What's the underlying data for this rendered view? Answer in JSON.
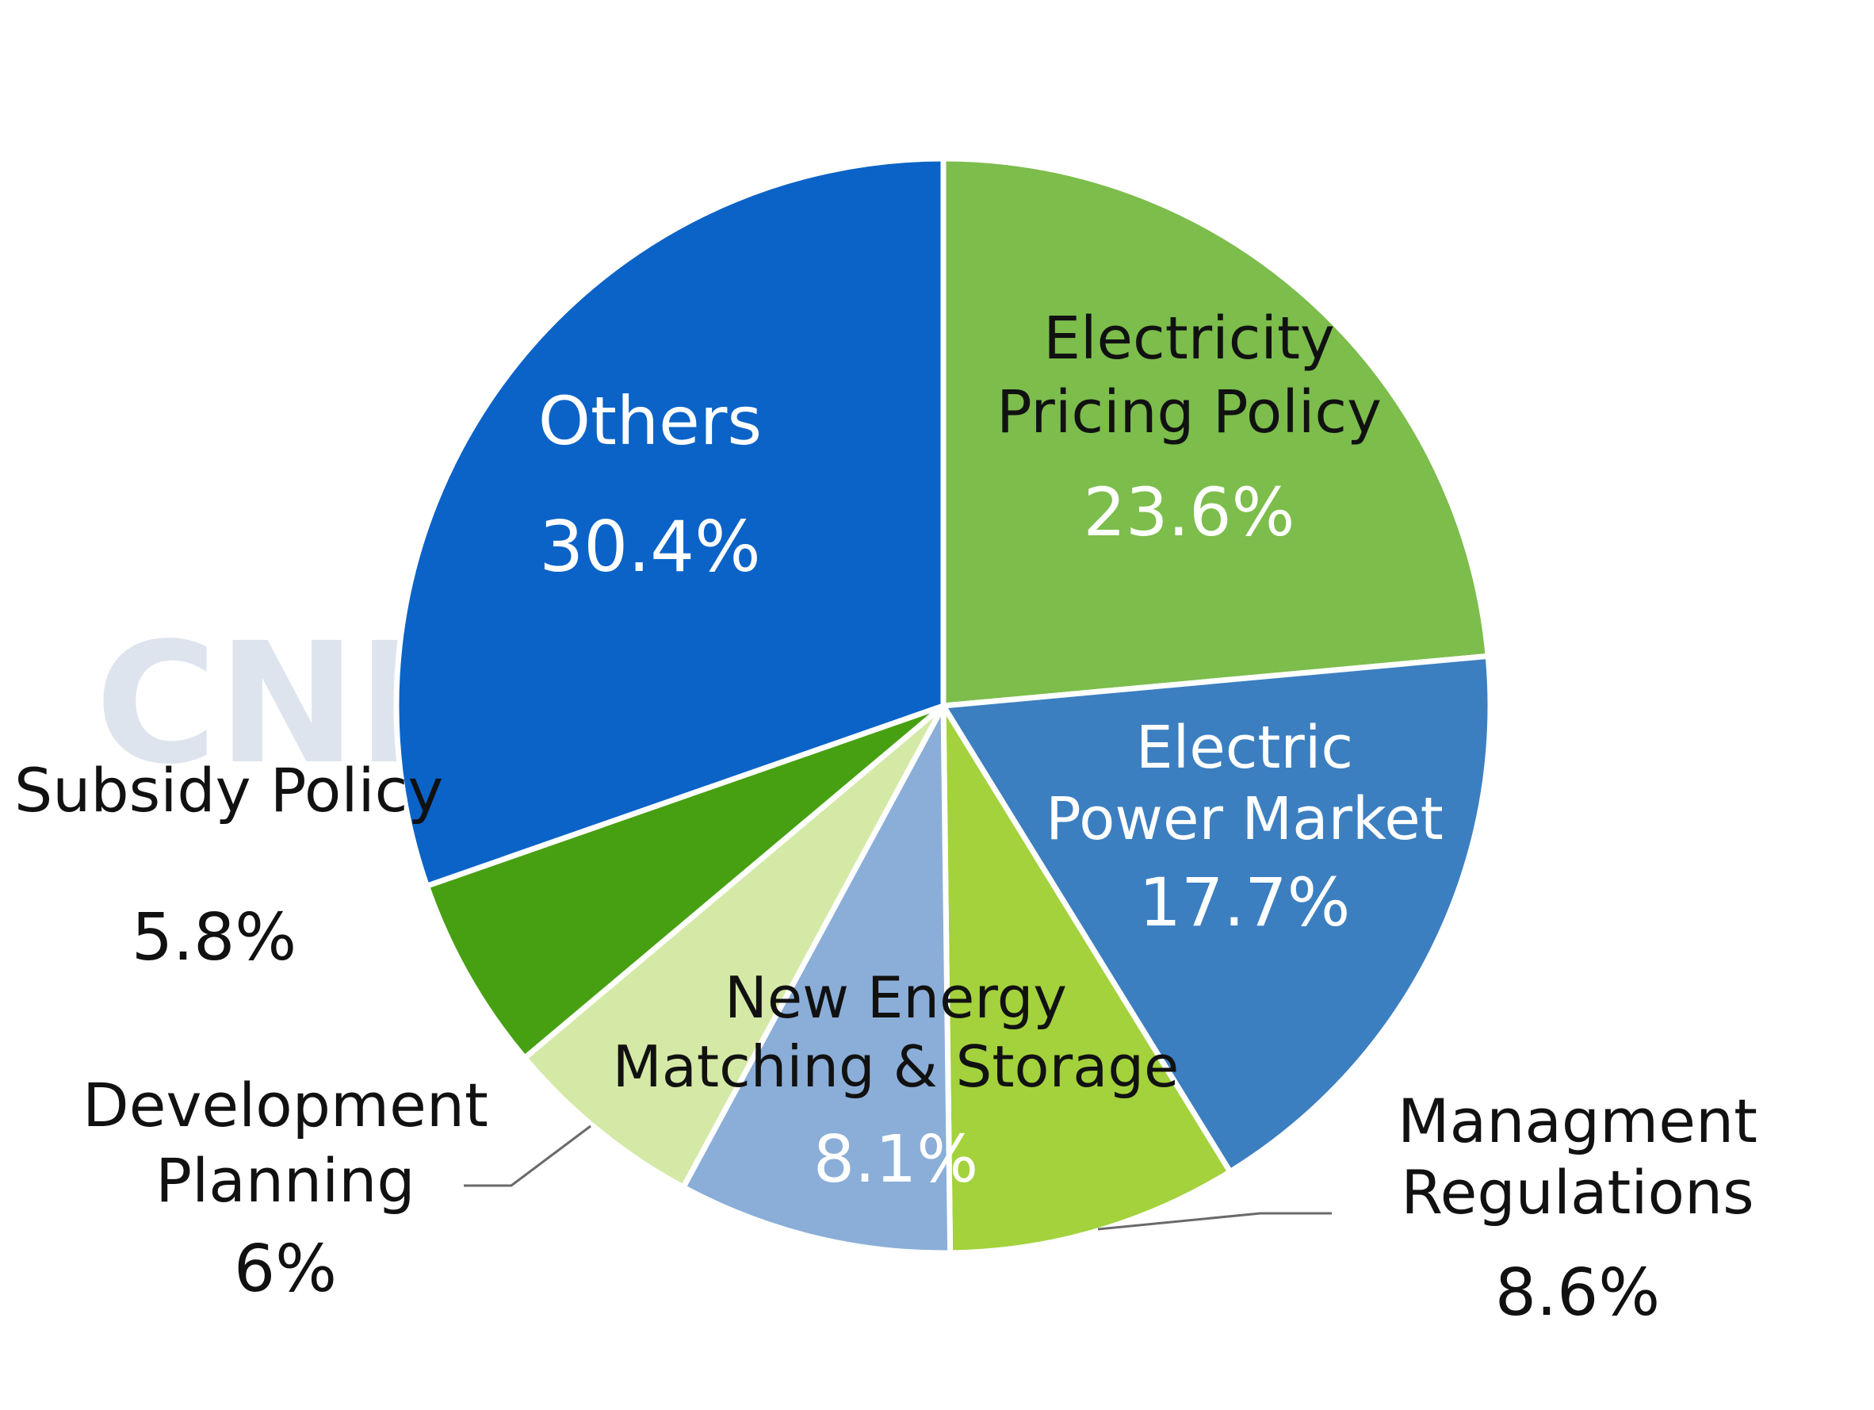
{
  "chart_data": {
    "type": "pie",
    "title": "",
    "watermark": "CNE",
    "start_angle_deg": 0,
    "direction": "clockwise",
    "slices": [
      {
        "name_lines": [
          "Electricity",
          "Pricing Policy"
        ],
        "value_label": "23.6%",
        "value": 23.6,
        "color": "#7cbd4c",
        "label_style": "inside-dark"
      },
      {
        "name_lines": [
          "Electric",
          "Power Market"
        ],
        "value_label": "17.7%",
        "value": 17.7,
        "color": "#3c7fc0",
        "label_style": "inside-light"
      },
      {
        "name_lines": [
          "Managment",
          "Regulations"
        ],
        "value_label": "8.6%",
        "value": 8.6,
        "color": "#a3d23c",
        "label_style": "outside"
      },
      {
        "name_lines": [
          "New Energy",
          "Matching & Storage"
        ],
        "value_label": "8.1%",
        "value": 8.1,
        "color": "#8aaed8",
        "label_style": "inside-mixed"
      },
      {
        "name_lines": [
          "Development",
          "Planning"
        ],
        "value_label": "6%",
        "value": 6.0,
        "color": "#d4e9a6",
        "label_style": "outside"
      },
      {
        "name_lines": [
          "Subsidy Policy"
        ],
        "value_label": "5.8%",
        "value": 5.8,
        "color": "#47a012",
        "label_style": "outside"
      },
      {
        "name_lines": [
          "Others"
        ],
        "value_label": "30.4%",
        "value": 30.4,
        "color": "#0b63c7",
        "label_style": "inside-light"
      }
    ]
  }
}
